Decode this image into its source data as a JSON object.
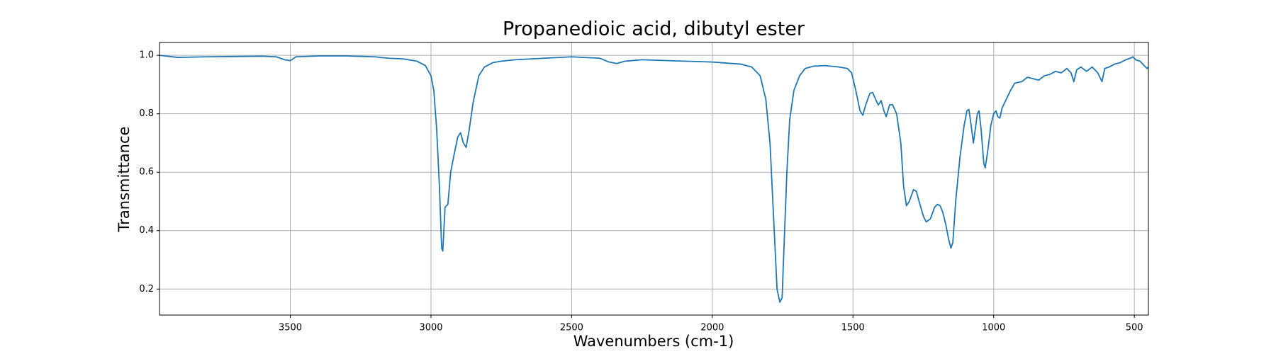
{
  "chart_data": {
    "type": "line",
    "title": "Propanedioic acid, dibutyl ester",
    "xlabel": "Wavenumbers (cm-1)",
    "ylabel": "Transmittance",
    "color": "#1f77b4",
    "grid": true,
    "xlim": [
      3965,
      450
    ],
    "ylim": [
      0.111,
      1.044
    ],
    "xticks": [
      3500,
      3000,
      2500,
      2000,
      1500,
      1000,
      500
    ],
    "yticks": [
      {
        "value": 1.0,
        "label": "1.0"
      },
      0.8,
      0.6,
      0.4,
      0.2
    ],
    "x": [
      3965,
      3900,
      3800,
      3700,
      3600,
      3550,
      3520,
      3500,
      3480,
      3400,
      3300,
      3200,
      3150,
      3100,
      3050,
      3020,
      3000,
      2990,
      2980,
      2970,
      2962,
      2958,
      2950,
      2940,
      2930,
      2920,
      2905,
      2895,
      2885,
      2875,
      2865,
      2850,
      2830,
      2810,
      2780,
      2750,
      2700,
      2600,
      2500,
      2400,
      2370,
      2340,
      2310,
      2250,
      2100,
      2000,
      1900,
      1860,
      1830,
      1810,
      1795,
      1780,
      1770,
      1760,
      1752,
      1745,
      1735,
      1725,
      1710,
      1690,
      1670,
      1640,
      1600,
      1550,
      1520,
      1505,
      1490,
      1475,
      1465,
      1455,
      1440,
      1430,
      1420,
      1410,
      1400,
      1390,
      1382,
      1370,
      1360,
      1345,
      1330,
      1320,
      1310,
      1300,
      1285,
      1275,
      1265,
      1250,
      1240,
      1225,
      1210,
      1200,
      1190,
      1180,
      1170,
      1160,
      1152,
      1145,
      1135,
      1120,
      1105,
      1095,
      1088,
      1080,
      1072,
      1065,
      1058,
      1052,
      1045,
      1035,
      1030,
      1020,
      1010,
      1000,
      992,
      985,
      978,
      970,
      955,
      940,
      925,
      900,
      880,
      860,
      840,
      820,
      800,
      780,
      760,
      740,
      725,
      715,
      705,
      690,
      670,
      650,
      630,
      615,
      605,
      590,
      570,
      550,
      530,
      515,
      505,
      495,
      480,
      465,
      455,
      450
    ],
    "values": [
      1.0,
      0.993,
      0.995,
      0.996,
      0.997,
      0.995,
      0.985,
      0.982,
      0.995,
      0.998,
      0.998,
      0.995,
      0.99,
      0.988,
      0.98,
      0.965,
      0.93,
      0.88,
      0.75,
      0.55,
      0.34,
      0.33,
      0.48,
      0.49,
      0.6,
      0.65,
      0.72,
      0.735,
      0.7,
      0.685,
      0.74,
      0.84,
      0.93,
      0.96,
      0.975,
      0.98,
      0.985,
      0.99,
      0.995,
      0.99,
      0.978,
      0.972,
      0.98,
      0.985,
      0.98,
      0.977,
      0.97,
      0.96,
      0.93,
      0.85,
      0.7,
      0.4,
      0.2,
      0.155,
      0.17,
      0.35,
      0.6,
      0.78,
      0.88,
      0.93,
      0.955,
      0.963,
      0.965,
      0.96,
      0.955,
      0.94,
      0.88,
      0.81,
      0.795,
      0.83,
      0.87,
      0.873,
      0.85,
      0.83,
      0.845,
      0.81,
      0.79,
      0.83,
      0.832,
      0.8,
      0.7,
      0.55,
      0.485,
      0.5,
      0.54,
      0.535,
      0.5,
      0.45,
      0.43,
      0.44,
      0.48,
      0.49,
      0.485,
      0.46,
      0.42,
      0.37,
      0.34,
      0.36,
      0.5,
      0.65,
      0.76,
      0.81,
      0.815,
      0.76,
      0.7,
      0.75,
      0.8,
      0.81,
      0.75,
      0.63,
      0.615,
      0.68,
      0.76,
      0.8,
      0.81,
      0.79,
      0.785,
      0.82,
      0.85,
      0.88,
      0.905,
      0.91,
      0.925,
      0.92,
      0.915,
      0.93,
      0.935,
      0.945,
      0.94,
      0.955,
      0.94,
      0.91,
      0.95,
      0.96,
      0.945,
      0.96,
      0.94,
      0.91,
      0.955,
      0.96,
      0.97,
      0.975,
      0.985,
      0.99,
      0.995,
      0.985,
      0.98,
      0.965,
      0.955,
      0.96
    ]
  }
}
